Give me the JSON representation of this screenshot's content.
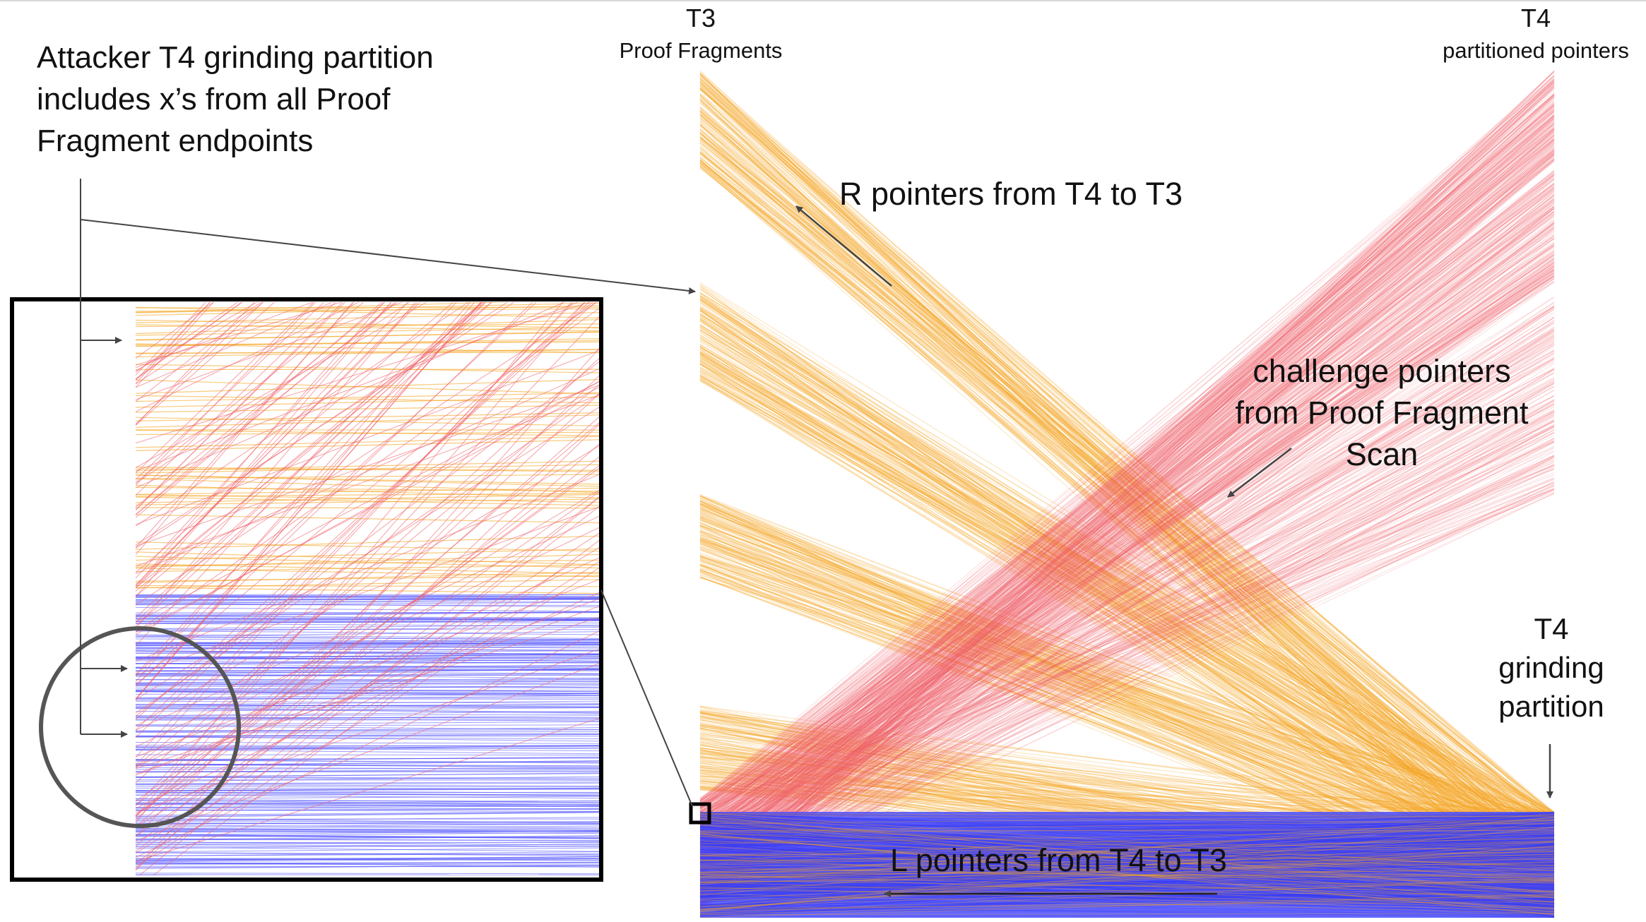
{
  "labels": {
    "t3_title": "T3",
    "t3_sub": "Proof Fragments",
    "t4_title": "T4",
    "t4_sub": "partitioned pointers",
    "attacker_line1": "Attacker T4 grinding partition",
    "attacker_line2": "includes x’s from all Proof",
    "attacker_line3": "Fragment endpoints",
    "r_pointers": "R pointers from T4 to T3",
    "challenge_line1": "challenge pointers",
    "challenge_line2": "from Proof Fragment",
    "challenge_line3": "Scan",
    "grinding_line1": "T4",
    "grinding_line2": "grinding",
    "grinding_line3": "partition",
    "l_pointers": "L pointers from T4 to T3"
  },
  "colors": {
    "r_pointer": "#f5a623",
    "challenge_pointer": "#f0606a",
    "l_pointer": "#4a4cff",
    "frame": "#000000",
    "annotation": "#444444"
  }
}
